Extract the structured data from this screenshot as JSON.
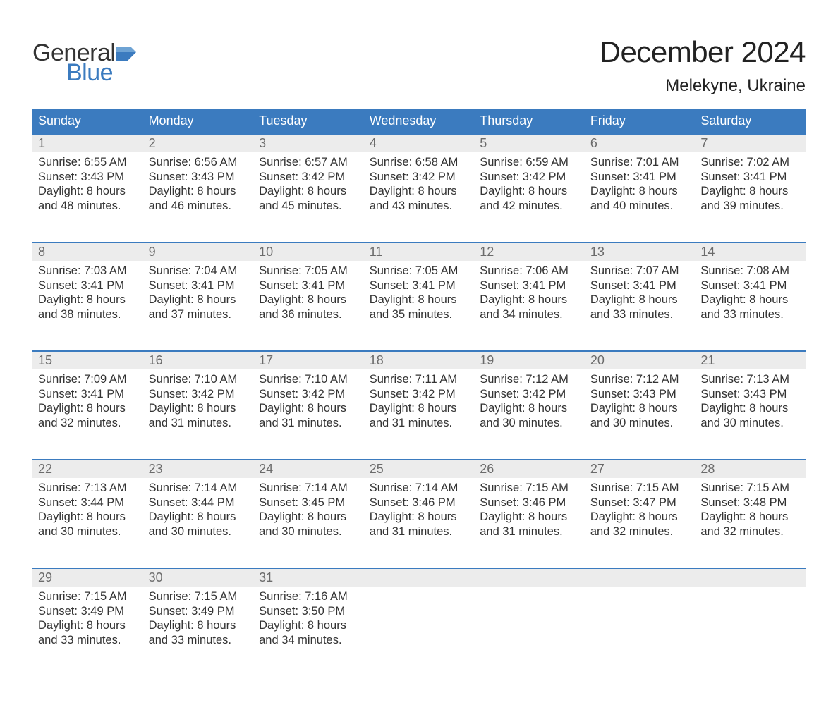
{
  "brand": {
    "general": "General",
    "blue": "Blue"
  },
  "title": "December 2024",
  "location": "Melekyne, Ukraine",
  "colors": {
    "header_bg": "#3b7bbf",
    "header_text": "#ffffff",
    "daynum_bg": "#ececec",
    "daynum_text": "#6b6b6b",
    "body_text": "#333333",
    "rule": "#3b7bbf",
    "page_bg": "#ffffff",
    "logo_blue": "#3b7bbf",
    "logo_dark": "#333333"
  },
  "weekdays": [
    "Sunday",
    "Monday",
    "Tuesday",
    "Wednesday",
    "Thursday",
    "Friday",
    "Saturday"
  ],
  "weeks": [
    [
      {
        "n": "1",
        "sunrise": "Sunrise: 6:55 AM",
        "sunset": "Sunset: 3:43 PM",
        "d1": "Daylight: 8 hours",
        "d2": "and 48 minutes."
      },
      {
        "n": "2",
        "sunrise": "Sunrise: 6:56 AM",
        "sunset": "Sunset: 3:43 PM",
        "d1": "Daylight: 8 hours",
        "d2": "and 46 minutes."
      },
      {
        "n": "3",
        "sunrise": "Sunrise: 6:57 AM",
        "sunset": "Sunset: 3:42 PM",
        "d1": "Daylight: 8 hours",
        "d2": "and 45 minutes."
      },
      {
        "n": "4",
        "sunrise": "Sunrise: 6:58 AM",
        "sunset": "Sunset: 3:42 PM",
        "d1": "Daylight: 8 hours",
        "d2": "and 43 minutes."
      },
      {
        "n": "5",
        "sunrise": "Sunrise: 6:59 AM",
        "sunset": "Sunset: 3:42 PM",
        "d1": "Daylight: 8 hours",
        "d2": "and 42 minutes."
      },
      {
        "n": "6",
        "sunrise": "Sunrise: 7:01 AM",
        "sunset": "Sunset: 3:41 PM",
        "d1": "Daylight: 8 hours",
        "d2": "and 40 minutes."
      },
      {
        "n": "7",
        "sunrise": "Sunrise: 7:02 AM",
        "sunset": "Sunset: 3:41 PM",
        "d1": "Daylight: 8 hours",
        "d2": "and 39 minutes."
      }
    ],
    [
      {
        "n": "8",
        "sunrise": "Sunrise: 7:03 AM",
        "sunset": "Sunset: 3:41 PM",
        "d1": "Daylight: 8 hours",
        "d2": "and 38 minutes."
      },
      {
        "n": "9",
        "sunrise": "Sunrise: 7:04 AM",
        "sunset": "Sunset: 3:41 PM",
        "d1": "Daylight: 8 hours",
        "d2": "and 37 minutes."
      },
      {
        "n": "10",
        "sunrise": "Sunrise: 7:05 AM",
        "sunset": "Sunset: 3:41 PM",
        "d1": "Daylight: 8 hours",
        "d2": "and 36 minutes."
      },
      {
        "n": "11",
        "sunrise": "Sunrise: 7:05 AM",
        "sunset": "Sunset: 3:41 PM",
        "d1": "Daylight: 8 hours",
        "d2": "and 35 minutes."
      },
      {
        "n": "12",
        "sunrise": "Sunrise: 7:06 AM",
        "sunset": "Sunset: 3:41 PM",
        "d1": "Daylight: 8 hours",
        "d2": "and 34 minutes."
      },
      {
        "n": "13",
        "sunrise": "Sunrise: 7:07 AM",
        "sunset": "Sunset: 3:41 PM",
        "d1": "Daylight: 8 hours",
        "d2": "and 33 minutes."
      },
      {
        "n": "14",
        "sunrise": "Sunrise: 7:08 AM",
        "sunset": "Sunset: 3:41 PM",
        "d1": "Daylight: 8 hours",
        "d2": "and 33 minutes."
      }
    ],
    [
      {
        "n": "15",
        "sunrise": "Sunrise: 7:09 AM",
        "sunset": "Sunset: 3:41 PM",
        "d1": "Daylight: 8 hours",
        "d2": "and 32 minutes."
      },
      {
        "n": "16",
        "sunrise": "Sunrise: 7:10 AM",
        "sunset": "Sunset: 3:42 PM",
        "d1": "Daylight: 8 hours",
        "d2": "and 31 minutes."
      },
      {
        "n": "17",
        "sunrise": "Sunrise: 7:10 AM",
        "sunset": "Sunset: 3:42 PM",
        "d1": "Daylight: 8 hours",
        "d2": "and 31 minutes."
      },
      {
        "n": "18",
        "sunrise": "Sunrise: 7:11 AM",
        "sunset": "Sunset: 3:42 PM",
        "d1": "Daylight: 8 hours",
        "d2": "and 31 minutes."
      },
      {
        "n": "19",
        "sunrise": "Sunrise: 7:12 AM",
        "sunset": "Sunset: 3:42 PM",
        "d1": "Daylight: 8 hours",
        "d2": "and 30 minutes."
      },
      {
        "n": "20",
        "sunrise": "Sunrise: 7:12 AM",
        "sunset": "Sunset: 3:43 PM",
        "d1": "Daylight: 8 hours",
        "d2": "and 30 minutes."
      },
      {
        "n": "21",
        "sunrise": "Sunrise: 7:13 AM",
        "sunset": "Sunset: 3:43 PM",
        "d1": "Daylight: 8 hours",
        "d2": "and 30 minutes."
      }
    ],
    [
      {
        "n": "22",
        "sunrise": "Sunrise: 7:13 AM",
        "sunset": "Sunset: 3:44 PM",
        "d1": "Daylight: 8 hours",
        "d2": "and 30 minutes."
      },
      {
        "n": "23",
        "sunrise": "Sunrise: 7:14 AM",
        "sunset": "Sunset: 3:44 PM",
        "d1": "Daylight: 8 hours",
        "d2": "and 30 minutes."
      },
      {
        "n": "24",
        "sunrise": "Sunrise: 7:14 AM",
        "sunset": "Sunset: 3:45 PM",
        "d1": "Daylight: 8 hours",
        "d2": "and 30 minutes."
      },
      {
        "n": "25",
        "sunrise": "Sunrise: 7:14 AM",
        "sunset": "Sunset: 3:46 PM",
        "d1": "Daylight: 8 hours",
        "d2": "and 31 minutes."
      },
      {
        "n": "26",
        "sunrise": "Sunrise: 7:15 AM",
        "sunset": "Sunset: 3:46 PM",
        "d1": "Daylight: 8 hours",
        "d2": "and 31 minutes."
      },
      {
        "n": "27",
        "sunrise": "Sunrise: 7:15 AM",
        "sunset": "Sunset: 3:47 PM",
        "d1": "Daylight: 8 hours",
        "d2": "and 32 minutes."
      },
      {
        "n": "28",
        "sunrise": "Sunrise: 7:15 AM",
        "sunset": "Sunset: 3:48 PM",
        "d1": "Daylight: 8 hours",
        "d2": "and 32 minutes."
      }
    ],
    [
      {
        "n": "29",
        "sunrise": "Sunrise: 7:15 AM",
        "sunset": "Sunset: 3:49 PM",
        "d1": "Daylight: 8 hours",
        "d2": "and 33 minutes."
      },
      {
        "n": "30",
        "sunrise": "Sunrise: 7:15 AM",
        "sunset": "Sunset: 3:49 PM",
        "d1": "Daylight: 8 hours",
        "d2": "and 33 minutes."
      },
      {
        "n": "31",
        "sunrise": "Sunrise: 7:16 AM",
        "sunset": "Sunset: 3:50 PM",
        "d1": "Daylight: 8 hours",
        "d2": "and 34 minutes."
      },
      null,
      null,
      null,
      null
    ]
  ]
}
